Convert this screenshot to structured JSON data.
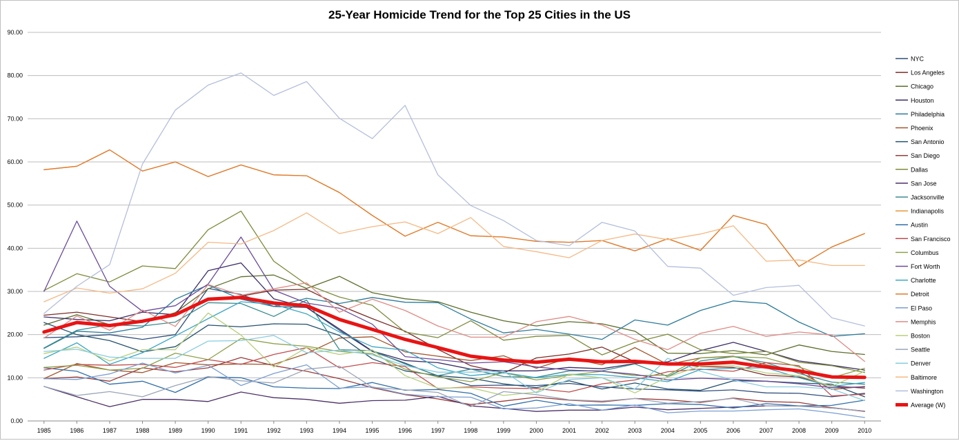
{
  "chart_data": {
    "type": "line",
    "title": "25-Year Homicide Trend for the Top 25 Cities in the US",
    "xlabel": "",
    "ylabel": "",
    "ylim": [
      0,
      90
    ],
    "ytick_labels": [
      "0.00",
      "10.00",
      "20.00",
      "30.00",
      "40.00",
      "50.00",
      "60.00",
      "70.00",
      "80.00",
      "90.00"
    ],
    "grid": "horizontal",
    "legend_position": "right",
    "categories": [
      "1985",
      "1986",
      "1987",
      "1988",
      "1989",
      "1990",
      "1991",
      "1992",
      "1993",
      "1994",
      "1995",
      "1996",
      "1997",
      "1998",
      "1999",
      "2000",
      "2001",
      "2002",
      "2003",
      "2004",
      "2005",
      "2006",
      "2007",
      "2008",
      "2009",
      "2010"
    ],
    "series": [
      {
        "name": "NYC",
        "color": "#2f4e7a",
        "values": [
          19.3,
          19.5,
          20.0,
          18.9,
          20.0,
          30.7,
          29.3,
          26.5,
          26.3,
          21.0,
          16.1,
          13.4,
          10.4,
          8.2,
          8.3,
          8.2,
          8.7,
          7.9,
          7.4,
          7.2,
          6.9,
          7.2,
          6.5,
          6.4,
          5.6,
          6.4
        ]
      },
      {
        "name": "Los Angeles",
        "color": "#7b2c26",
        "values": [
          24.5,
          25.2,
          24.1,
          23.0,
          24.5,
          28.2,
          28.9,
          30.3,
          30.5,
          26.8,
          23.7,
          20.8,
          16.6,
          12.8,
          11.1,
          14.6,
          15.5,
          17.1,
          13.7,
          13.4,
          12.6,
          12.4,
          10.6,
          10.2,
          8.1,
          7.6
        ]
      },
      {
        "name": "Chicago",
        "color": "#5a6e2a",
        "values": [
          22.2,
          24.6,
          22.3,
          22.8,
          25.1,
          30.6,
          33.4,
          33.8,
          30.7,
          33.5,
          29.7,
          28.3,
          27.6,
          25.2,
          23.2,
          22.0,
          23.0,
          22.5,
          20.8,
          15.7,
          15.6,
          16.3,
          15.3,
          17.6,
          16.1,
          15.4
        ]
      },
      {
        "name": "Houston",
        "color": "#3b2c66",
        "values": [
          24.1,
          23.5,
          23.2,
          25.2,
          24.6,
          34.8,
          36.6,
          28.3,
          26.3,
          21.3,
          16.2,
          14.0,
          13.5,
          12.0,
          11.6,
          11.6,
          12.4,
          12.1,
          13.3,
          13.7,
          16.3,
          18.2,
          16.1,
          13.9,
          12.9,
          11.8
        ]
      },
      {
        "name": "Philadelphia",
        "color": "#2a7a9a",
        "values": [
          16.8,
          20.8,
          20.4,
          21.7,
          28.2,
          31.5,
          28.2,
          26.5,
          28.4,
          27.2,
          28.6,
          27.5,
          27.4,
          23.6,
          20.4,
          21.2,
          20.1,
          18.9,
          23.4,
          22.2,
          25.6,
          27.8,
          27.2,
          22.9,
          19.6,
          20.2
        ]
      },
      {
        "name": "Phoenix",
        "color": "#a1562c",
        "values": [
          9.8,
          13.3,
          11.8,
          11.2,
          13.5,
          13.0,
          13.2,
          13.1,
          15.6,
          19.2,
          19.5,
          16.0,
          15.0,
          14.0,
          15.1,
          12.2,
          14.6,
          13.0,
          17.0,
          13.1,
          14.6,
          15.0,
          13.0,
          11.4,
          7.3,
          8.0
        ]
      },
      {
        "name": "San Antonio",
        "color": "#22506e",
        "values": [
          22.8,
          20.0,
          18.6,
          16.0,
          17.2,
          22.2,
          21.8,
          22.5,
          22.4,
          19.8,
          14.4,
          11.6,
          10.5,
          9.9,
          8.6,
          7.7,
          9.3,
          7.4,
          8.8,
          7.4,
          7.1,
          9.3,
          9.2,
          8.8,
          8.5,
          5.6
        ]
      },
      {
        "name": "San Diego",
        "color": "#9a3a38",
        "values": [
          9.8,
          10.2,
          9.2,
          12.3,
          11.4,
          12.3,
          14.7,
          12.8,
          11.5,
          9.8,
          7.7,
          6.1,
          5.1,
          3.8,
          4.6,
          5.5,
          4.8,
          4.4,
          5.2,
          4.9,
          4.3,
          5.3,
          4.5,
          4.3,
          3.1,
          2.2
        ]
      },
      {
        "name": "Dallas",
        "color": "#7e8a3a",
        "values": [
          30.2,
          34.1,
          32.2,
          35.9,
          35.3,
          44.3,
          48.6,
          37.0,
          31.6,
          28.7,
          26.8,
          20.6,
          19.3,
          23.2,
          18.7,
          19.6,
          19.8,
          15.3,
          18.2,
          20.1,
          16.5,
          15.6,
          16.1,
          13.6,
          12.8,
          11.2
        ]
      },
      {
        "name": "San Jose",
        "color": "#4b2e66",
        "values": [
          8.0,
          5.6,
          3.3,
          5.0,
          5.0,
          4.5,
          6.7,
          5.4,
          5.0,
          4.1,
          4.7,
          4.8,
          5.7,
          3.5,
          2.9,
          2.2,
          2.5,
          2.5,
          3.2,
          2.6,
          2.9,
          3.2,
          3.5,
          3.5,
          3.0,
          2.3
        ]
      },
      {
        "name": "Jacksonville",
        "color": "#3a8b8f",
        "values": [
          16.9,
          21.0,
          22.3,
          22.0,
          22.9,
          27.4,
          27.2,
          24.2,
          28.0,
          16.5,
          16.3,
          13.2,
          10.5,
          12.0,
          10.3,
          10.1,
          11.6,
          11.6,
          13.2,
          10.3,
          13.9,
          14.9,
          13.5,
          11.0,
          9.0,
          8.5
        ]
      },
      {
        "name": "Indianapolis",
        "color": "#e8963a",
        "values": [
          58.2,
          59.0,
          62.8,
          57.9,
          60.0,
          56.6,
          59.3,
          57.0,
          56.8,
          52.9,
          47.6,
          42.8,
          46.0,
          42.9,
          42.6,
          41.6,
          41.4,
          41.8,
          39.4,
          42.2,
          39.5,
          47.6,
          45.5,
          35.8,
          40.3,
          43.4
        ]
      },
      {
        "name": "Austin",
        "color": "#2f6ea8",
        "values": [
          12.3,
          11.5,
          8.5,
          9.2,
          6.6,
          10.2,
          10.0,
          7.9,
          7.6,
          7.5,
          8.9,
          7.1,
          7.3,
          6.4,
          3.4,
          4.8,
          3.6,
          3.7,
          3.6,
          4.0,
          3.8,
          3.0,
          4.0,
          3.5,
          3.6,
          4.8
        ]
      },
      {
        "name": "San Francisco",
        "color": "#c24a4a",
        "values": [
          11.8,
          13.1,
          12.9,
          13.1,
          12.4,
          14.2,
          13.1,
          15.4,
          17.0,
          12.3,
          13.5,
          12.6,
          7.5,
          7.9,
          7.6,
          7.5,
          6.7,
          8.6,
          9.5,
          11.4,
          12.0,
          11.5,
          13.5,
          12.8,
          5.8,
          6.2
        ]
      },
      {
        "name": "Columbus",
        "color": "#8da14a",
        "values": [
          12.4,
          12.9,
          11.8,
          12.2,
          15.7,
          14.2,
          19.1,
          17.9,
          17.3,
          16.1,
          15.6,
          12.0,
          10.2,
          9.1,
          11.2,
          9.5,
          10.6,
          11.5,
          10.5,
          10.6,
          14.6,
          14.9,
          14.6,
          12.5,
          10.0,
          12.2
        ]
      },
      {
        "name": "Fort Worth",
        "color": "#6a4a9a",
        "values": [
          30.0,
          46.3,
          31.2,
          25.4,
          26.7,
          31.7,
          42.6,
          30.3,
          27.3,
          26.1,
          22.4,
          14.9,
          14.2,
          13.4,
          13.7,
          12.5,
          11.8,
          11.5,
          10.8,
          9.5,
          9.9,
          9.6,
          9.2,
          8.6,
          7.7,
          7.9
        ]
      },
      {
        "name": "Charlotte",
        "color": "#3aa6c4",
        "values": [
          14.5,
          18.1,
          13.1,
          15.8,
          19.7,
          23.7,
          27.6,
          27.0,
          24.8,
          20.6,
          17.2,
          16.4,
          12.3,
          10.5,
          11.2,
          10.0,
          10.8,
          10.7,
          10.0,
          9.1,
          11.9,
          12.2,
          12.3,
          10.0,
          8.0,
          8.9
        ]
      },
      {
        "name": "Detroit",
        "color": "#e07a2c",
        "values": [
          58.2,
          59.0,
          62.8,
          57.9,
          60.0,
          56.6,
          59.3,
          57.0,
          56.8,
          52.9,
          47.6,
          42.8,
          46.0,
          42.9,
          42.6,
          41.6,
          41.4,
          41.8,
          39.4,
          42.2,
          39.5,
          47.6,
          45.5,
          35.8,
          40.3,
          43.4
        ]
      },
      {
        "name": "El Paso",
        "color": "#7a9ed2",
        "values": [
          9.8,
          9.6,
          10.9,
          13.4,
          11.1,
          12.9,
          8.2,
          11.0,
          13.0,
          7.6,
          7.9,
          6.2,
          5.6,
          5.5,
          2.8,
          3.0,
          4.0,
          2.5,
          3.7,
          1.9,
          2.3,
          2.3,
          2.6,
          2.8,
          1.9,
          0.8
        ]
      },
      {
        "name": "Memphis",
        "color": "#e08a84",
        "values": [
          19.2,
          24.3,
          21.0,
          25.7,
          21.9,
          31.6,
          29.1,
          30.6,
          32.0,
          25.2,
          28.2,
          25.6,
          22.0,
          19.4,
          19.4,
          23.0,
          24.2,
          22.2,
          18.9,
          16.5,
          20.3,
          21.9,
          19.6,
          20.6,
          19.9,
          13.8
        ]
      },
      {
        "name": "Boston",
        "color": "#b5cf7a",
        "values": [
          15.6,
          17.1,
          13.9,
          16.5,
          16.5,
          25.0,
          19.9,
          12.5,
          17.0,
          15.4,
          16.5,
          10.5,
          7.6,
          7.7,
          5.9,
          6.7,
          10.8,
          10.0,
          6.5,
          10.2,
          12.7,
          12.8,
          11.1,
          10.5,
          8.0,
          11.5
        ]
      },
      {
        "name": "Seattle",
        "color": "#9aa4b8",
        "values": [
          8.0,
          5.9,
          6.8,
          5.6,
          8.2,
          10.3,
          9.3,
          8.8,
          12.0,
          12.7,
          7.8,
          7.2,
          6.6,
          3.3,
          6.8,
          6.1,
          4.9,
          4.6,
          5.2,
          4.1,
          4.5,
          5.2,
          3.5,
          3.4,
          3.0,
          2.3
        ]
      },
      {
        "name": "Denver",
        "color": "#88cce0",
        "values": [
          16.1,
          16.6,
          14.8,
          14.5,
          14.5,
          18.5,
          18.6,
          19.8,
          15.8,
          16.4,
          15.3,
          12.8,
          11.3,
          11.3,
          11.5,
          6.5,
          9.6,
          10.0,
          7.4,
          14.5,
          11.5,
          9.5,
          7.9,
          7.9,
          7.4,
          4.7
        ]
      },
      {
        "name": "Baltimore",
        "color": "#f5b882",
        "values": [
          27.6,
          30.8,
          29.6,
          30.6,
          34.2,
          41.4,
          41.0,
          44.1,
          48.2,
          43.4,
          45.0,
          46.1,
          43.4,
          47.1,
          40.4,
          39.2,
          37.8,
          41.8,
          43.3,
          42.0,
          43.3,
          45.2,
          37.0,
          37.3,
          36.0,
          36.0
        ]
      },
      {
        "name": "Washington",
        "color": "#b3bedd",
        "values": [
          24.9,
          31.2,
          36.2,
          59.5,
          72.0,
          77.8,
          80.6,
          75.4,
          78.6,
          70.1,
          65.4,
          73.1,
          57.0,
          49.9,
          46.4,
          41.8,
          40.6,
          46.0,
          44.0,
          35.8,
          35.4,
          29.1,
          30.9,
          31.4,
          23.9,
          22.0
        ]
      },
      {
        "name": "Average (W)",
        "color": "#e81414",
        "values": [
          20.6,
          22.8,
          22.1,
          23.1,
          24.6,
          28.2,
          28.6,
          27.3,
          26.7,
          23.5,
          21.2,
          18.9,
          17.0,
          15.0,
          14.1,
          13.6,
          14.3,
          13.7,
          13.8,
          13.2,
          13.2,
          13.6,
          12.5,
          11.6,
          10.2,
          10.1
        ],
        "bold": true
      }
    ]
  }
}
